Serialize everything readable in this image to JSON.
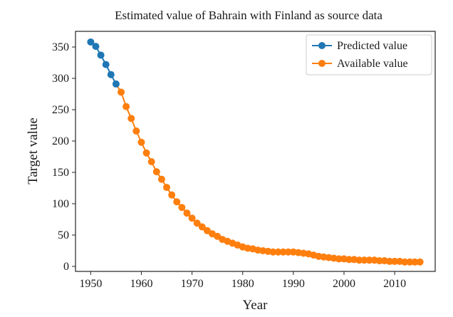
{
  "chart_data": {
    "type": "line",
    "title": "Estimated value of Bahrain with Finland as source data",
    "xlabel": "Year",
    "ylabel": "Target value",
    "xlim": [
      1947,
      2018
    ],
    "ylim": [
      -8,
      375
    ],
    "x_ticks": [
      1950,
      1960,
      1970,
      1980,
      1990,
      2000,
      2010
    ],
    "y_ticks": [
      0,
      50,
      100,
      150,
      200,
      250,
      300,
      350
    ],
    "grid": false,
    "legend_position": "top-right",
    "series": [
      {
        "name": "Predicted value",
        "color": "#1f77b4",
        "marker": "circle",
        "x": [
          1950,
          1951,
          1952,
          1953,
          1954,
          1955
        ],
        "y": [
          358,
          351,
          337,
          322,
          306,
          291
        ]
      },
      {
        "name": "Available value",
        "color": "#ff7f0e",
        "marker": "circle",
        "x": [
          1956,
          1957,
          1958,
          1959,
          1960,
          1961,
          1962,
          1963,
          1964,
          1965,
          1966,
          1967,
          1968,
          1969,
          1970,
          1971,
          1972,
          1973,
          1974,
          1975,
          1976,
          1977,
          1978,
          1979,
          1980,
          1981,
          1982,
          1983,
          1984,
          1985,
          1986,
          1987,
          1988,
          1989,
          1990,
          1991,
          1992,
          1993,
          1994,
          1995,
          1996,
          1997,
          1998,
          1999,
          2000,
          2001,
          2002,
          2003,
          2004,
          2005,
          2006,
          2007,
          2008,
          2009,
          2010,
          2011,
          2012,
          2013,
          2014,
          2015
        ],
        "y": [
          278,
          255,
          236,
          216,
          198,
          181,
          167,
          151,
          139,
          126,
          114,
          103,
          94,
          85,
          77,
          69,
          63,
          57,
          52,
          48,
          43,
          40,
          37,
          34,
          31,
          29,
          28,
          26,
          25,
          24,
          23,
          23,
          23,
          23,
          23,
          22,
          21,
          20,
          18,
          16,
          15,
          14,
          13,
          12,
          12,
          11,
          11,
          10,
          10,
          10,
          10,
          9,
          9,
          8,
          8,
          8,
          7,
          7,
          7,
          7
        ]
      }
    ]
  }
}
